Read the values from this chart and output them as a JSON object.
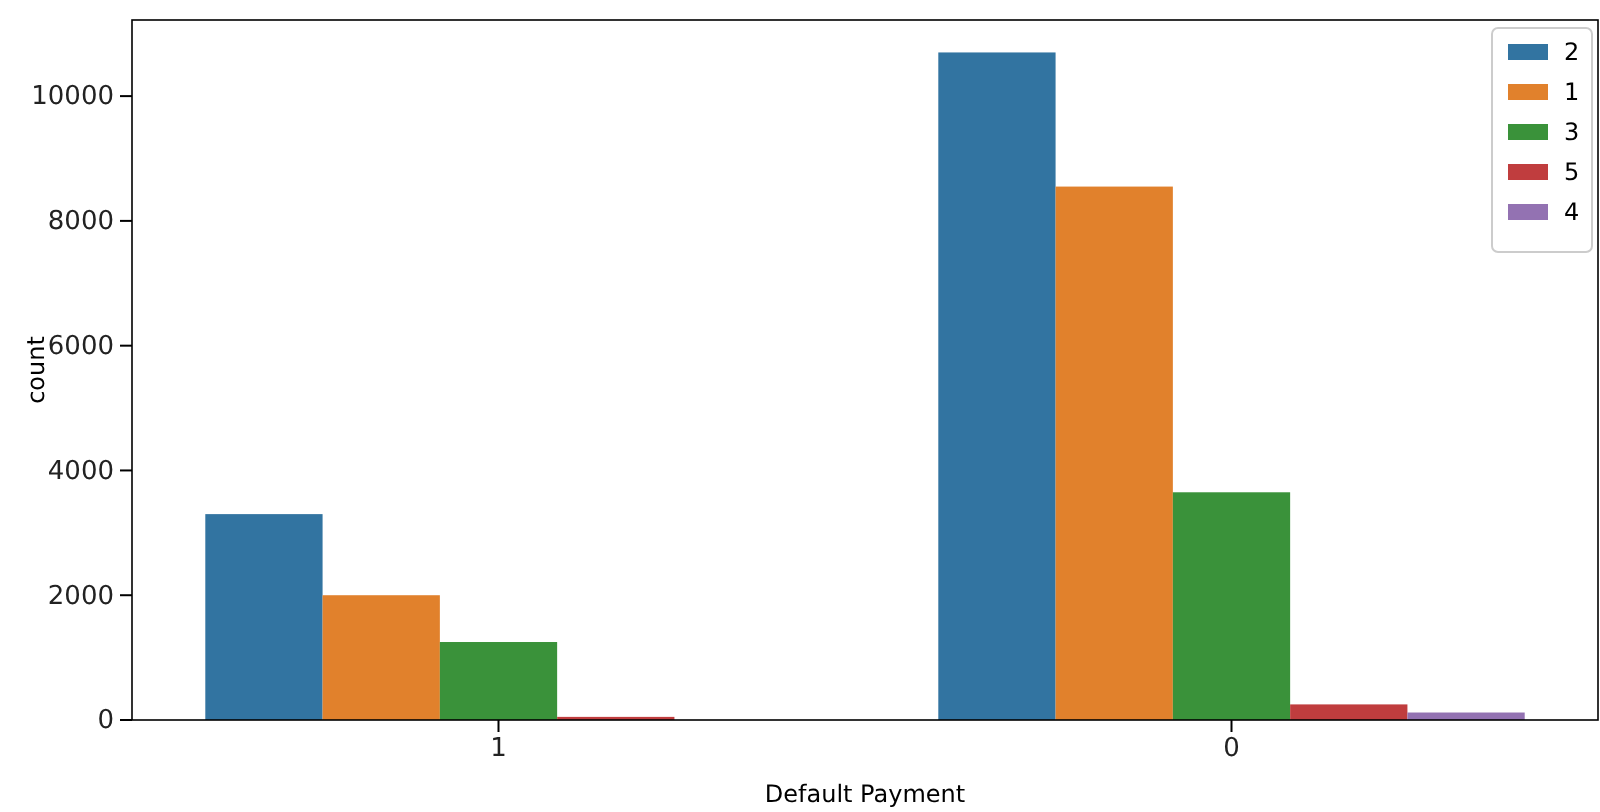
{
  "chart_data": {
    "type": "bar",
    "xlabel": "Default Payment",
    "ylabel": "count",
    "categories": [
      "1",
      "0"
    ],
    "series": [
      {
        "name": "2",
        "color": "#3274a1",
        "values": [
          3300,
          10700
        ]
      },
      {
        "name": "1",
        "color": "#e1812c",
        "values": [
          2000,
          8550
        ]
      },
      {
        "name": "3",
        "color": "#3a923a",
        "values": [
          1250,
          3650
        ]
      },
      {
        "name": "5",
        "color": "#c03d3e",
        "values": [
          50,
          250
        ]
      },
      {
        "name": "4",
        "color": "#9372b2",
        "values": [
          null,
          120
        ]
      }
    ],
    "ylim": [
      0,
      11220
    ],
    "yticks": [
      0,
      2000,
      4000,
      6000,
      8000,
      10000
    ],
    "grid": false,
    "legend": "top right"
  }
}
